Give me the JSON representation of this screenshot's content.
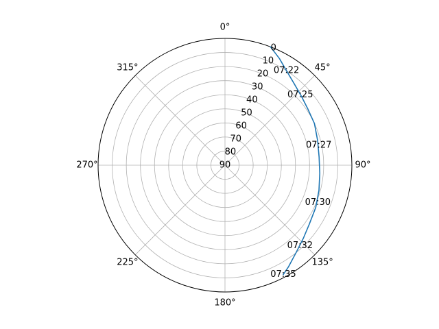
{
  "chart_data": {
    "type": "polar-line",
    "title": "",
    "theta_zero_location": "N",
    "theta_direction": "clockwise",
    "theta_tick_labels": [
      "0°",
      "45°",
      "90°",
      "135°",
      "180°",
      "225°",
      "270°",
      "315°"
    ],
    "theta_ticks_deg": [
      0,
      45,
      90,
      135,
      180,
      225,
      270,
      315
    ],
    "r_axis": {
      "quantity": "elevation",
      "tick_labels": [
        "0",
        "10",
        "20",
        "30",
        "40",
        "50",
        "60",
        "70",
        "80",
        "90"
      ],
      "ticks": [
        0,
        10,
        20,
        30,
        40,
        50,
        60,
        70,
        80,
        90
      ],
      "range": [
        0,
        90
      ],
      "direction": "inverted",
      "label_angle_deg": 22.5
    },
    "grid": true,
    "series": [
      {
        "color": "#1f77b4",
        "points": [
          {
            "azimuth": 21,
            "elevation": 0
          },
          {
            "azimuth": 27,
            "elevation": 5
          },
          {
            "azimuth": 33,
            "elevation": 10
          },
          {
            "azimuth": 40,
            "elevation": 14
          },
          {
            "azimuth": 48,
            "elevation": 17
          },
          {
            "azimuth": 56,
            "elevation": 19
          },
          {
            "azimuth": 65,
            "elevation": 20
          },
          {
            "azimuth": 75,
            "elevation": 22
          },
          {
            "azimuth": 85,
            "elevation": 23
          },
          {
            "azimuth": 95,
            "elevation": 22.5
          },
          {
            "azimuth": 105,
            "elevation": 21
          },
          {
            "azimuth": 115,
            "elevation": 19
          },
          {
            "azimuth": 125,
            "elevation": 17
          },
          {
            "azimuth": 133,
            "elevation": 14
          },
          {
            "azimuth": 141,
            "elevation": 10
          },
          {
            "azimuth": 148,
            "elevation": 5
          },
          {
            "azimuth": 152,
            "elevation": 2
          }
        ]
      }
    ],
    "annotations": [
      {
        "text": "07:22",
        "azimuth": 33,
        "elevation": 10
      },
      {
        "text": "07:25",
        "azimuth": 47,
        "elevation": 17
      },
      {
        "text": "07:27",
        "azimuth": 78,
        "elevation": 22
      },
      {
        "text": "07:30",
        "azimuth": 112,
        "elevation": 19
      },
      {
        "text": "07:32",
        "azimuth": 137,
        "elevation": 12
      },
      {
        "text": "07:35",
        "azimuth": 152,
        "elevation": 2
      }
    ]
  }
}
